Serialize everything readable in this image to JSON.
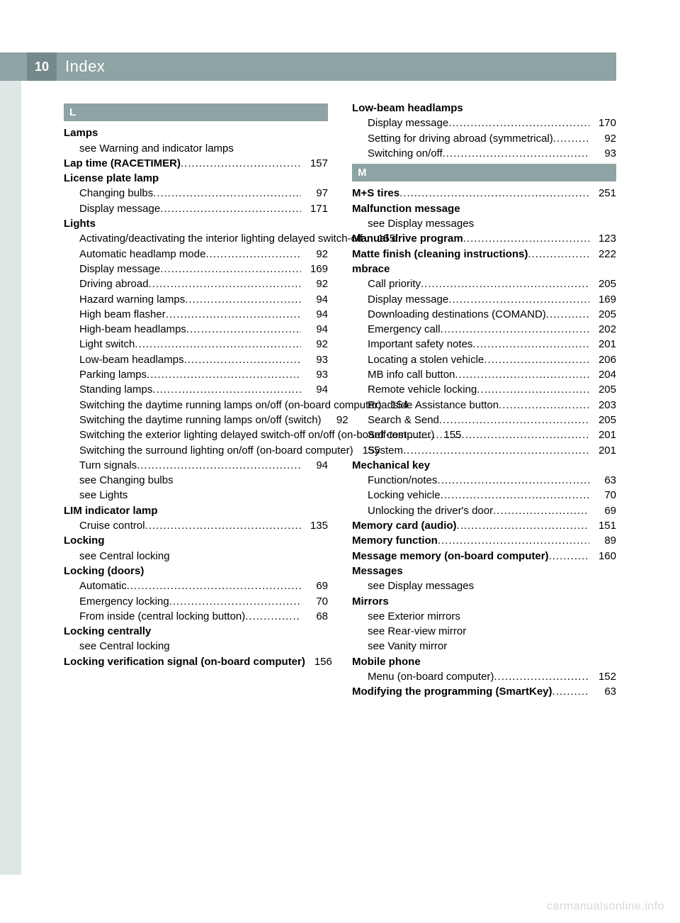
{
  "colors": {
    "header_bg": "#8ea3a3",
    "pagebox_bg": "#748a8a",
    "sidetab_bg": "#dfe6e6",
    "text": "#000000",
    "header_text": "#ffffff",
    "watermark": "#d7d7d7"
  },
  "page_number": "10",
  "header_title": "Index",
  "watermark": "carmanualsonline.info",
  "left_column": {
    "sections": [
      {
        "letter": "L",
        "entries": [
          {
            "type": "heading",
            "text": "Lamps"
          },
          {
            "type": "sub",
            "text": "see Warning and indicator lamps"
          },
          {
            "type": "heading_page",
            "text": "Lap time (RACETIMER)",
            "page": "157"
          },
          {
            "type": "heading",
            "text": "License plate lamp"
          },
          {
            "type": "sub_page",
            "text": "Changing bulbs",
            "page": "97"
          },
          {
            "type": "sub_page",
            "text": "Display message",
            "page": "171"
          },
          {
            "type": "heading",
            "text": "Lights"
          },
          {
            "type": "sub_page",
            "text": "Activating/deactivating the interior lighting delayed switch-off .",
            "page": "155",
            "noleader": true
          },
          {
            "type": "sub_page",
            "text": "Automatic headlamp mode",
            "page": "92"
          },
          {
            "type": "sub_page",
            "text": "Display message",
            "page": "169"
          },
          {
            "type": "sub_page",
            "text": "Driving abroad",
            "page": "92"
          },
          {
            "type": "sub_page",
            "text": "Hazard warning lamps",
            "page": "94"
          },
          {
            "type": "sub_page",
            "text": "High beam flasher",
            "page": "94"
          },
          {
            "type": "sub_page",
            "text": "High-beam headlamps",
            "page": "94"
          },
          {
            "type": "sub_page",
            "text": "Light switch",
            "page": "92"
          },
          {
            "type": "sub_page",
            "text": "Low-beam headlamps",
            "page": "93"
          },
          {
            "type": "sub_page",
            "text": "Parking lamps",
            "page": "93"
          },
          {
            "type": "sub_page",
            "text": "Standing lamps",
            "page": "94"
          },
          {
            "type": "sub_page",
            "text": "Switching the daytime running lamps on/off (on-board computer)",
            "page": "154"
          },
          {
            "type": "sub_page",
            "text": "Switching the daytime running lamps on/off (switch)",
            "page": "92"
          },
          {
            "type": "sub_page",
            "text": "Switching the exterior lighting delayed switch-off on/off (on-board computer)",
            "page": "155"
          },
          {
            "type": "sub_page",
            "text": "Switching the surround lighting on/off (on-board computer)",
            "page": "155"
          },
          {
            "type": "sub_page",
            "text": "Turn signals",
            "page": "94"
          },
          {
            "type": "sub",
            "text": "see Changing bulbs"
          },
          {
            "type": "sub",
            "text": "see Lights"
          },
          {
            "type": "heading",
            "text": "LIM indicator lamp"
          },
          {
            "type": "sub_page",
            "text": "Cruise control",
            "page": "135"
          },
          {
            "type": "heading",
            "text": "Locking"
          },
          {
            "type": "sub",
            "text": "see Central locking"
          },
          {
            "type": "heading",
            "text": "Locking (doors)"
          },
          {
            "type": "sub_page",
            "text": "Automatic",
            "page": "69"
          },
          {
            "type": "sub_page",
            "text": "Emergency locking",
            "page": "70"
          },
          {
            "type": "sub_page",
            "text": "From inside (central locking button)",
            "page": "68"
          },
          {
            "type": "heading",
            "text": "Locking centrally"
          },
          {
            "type": "sub",
            "text": "see Central locking"
          },
          {
            "type": "heading_page",
            "text": "Locking verification signal (on-board computer)",
            "page": "156"
          }
        ]
      }
    ]
  },
  "right_column": {
    "sections": [
      {
        "entries": [
          {
            "type": "heading",
            "text": "Low-beam headlamps"
          },
          {
            "type": "sub_page",
            "text": "Display message",
            "page": "170"
          },
          {
            "type": "sub_page",
            "text": "Setting for driving abroad (symmetrical)",
            "page": "92"
          },
          {
            "type": "sub_page",
            "text": "Switching on/off",
            "page": "93"
          }
        ]
      },
      {
        "letter": "M",
        "entries": [
          {
            "type": "heading_page",
            "text": "M+S tires",
            "page": "251"
          },
          {
            "type": "heading",
            "text": "Malfunction message"
          },
          {
            "type": "sub",
            "text": "see Display messages"
          },
          {
            "type": "heading_page",
            "text": "Manual drive program",
            "page": "123"
          },
          {
            "type": "heading_page",
            "text": "Matte finish (cleaning instructions)",
            "page": "222"
          },
          {
            "type": "heading",
            "text": "mbrace"
          },
          {
            "type": "sub_page",
            "text": "Call priority",
            "page": "205"
          },
          {
            "type": "sub_page",
            "text": "Display message",
            "page": "169"
          },
          {
            "type": "sub_page",
            "text": "Downloading destinations (COMAND)",
            "page": "205"
          },
          {
            "type": "sub_page",
            "text": "Emergency call",
            "page": "202"
          },
          {
            "type": "sub_page",
            "text": "Important safety notes",
            "page": "201"
          },
          {
            "type": "sub_page",
            "text": "Locating a stolen vehicle",
            "page": "206"
          },
          {
            "type": "sub_page",
            "text": "MB info call button",
            "page": "204"
          },
          {
            "type": "sub_page",
            "text": "Remote vehicle locking",
            "page": "205"
          },
          {
            "type": "sub_page",
            "text": "Roadside Assistance button",
            "page": "203"
          },
          {
            "type": "sub_page",
            "text": "Search & Send",
            "page": "205"
          },
          {
            "type": "sub_page",
            "text": "Self-test",
            "page": "201"
          },
          {
            "type": "sub_page",
            "text": "System",
            "page": "201"
          },
          {
            "type": "heading",
            "text": "Mechanical key"
          },
          {
            "type": "sub_page",
            "text": "Function/notes",
            "page": "63"
          },
          {
            "type": "sub_page",
            "text": "Locking vehicle",
            "page": "70"
          },
          {
            "type": "sub_page",
            "text": "Unlocking the driver's door",
            "page": "69"
          },
          {
            "type": "heading_page",
            "text": "Memory card (audio)",
            "page": "151"
          },
          {
            "type": "heading_page",
            "text": "Memory function",
            "page": "89"
          },
          {
            "type": "heading_page",
            "text": "Message memory (on-board computer)",
            "page": "160"
          },
          {
            "type": "heading",
            "text": "Messages"
          },
          {
            "type": "sub",
            "text": "see Display messages"
          },
          {
            "type": "heading",
            "text": "Mirrors"
          },
          {
            "type": "sub",
            "text": "see Exterior mirrors"
          },
          {
            "type": "sub",
            "text": "see Rear-view mirror"
          },
          {
            "type": "sub",
            "text": "see Vanity mirror"
          },
          {
            "type": "heading",
            "text": "Mobile phone"
          },
          {
            "type": "sub_page",
            "text": "Menu (on-board computer)",
            "page": "152"
          },
          {
            "type": "heading_page",
            "text": "Modifying the programming (SmartKey)",
            "page": "63"
          }
        ]
      }
    ]
  }
}
